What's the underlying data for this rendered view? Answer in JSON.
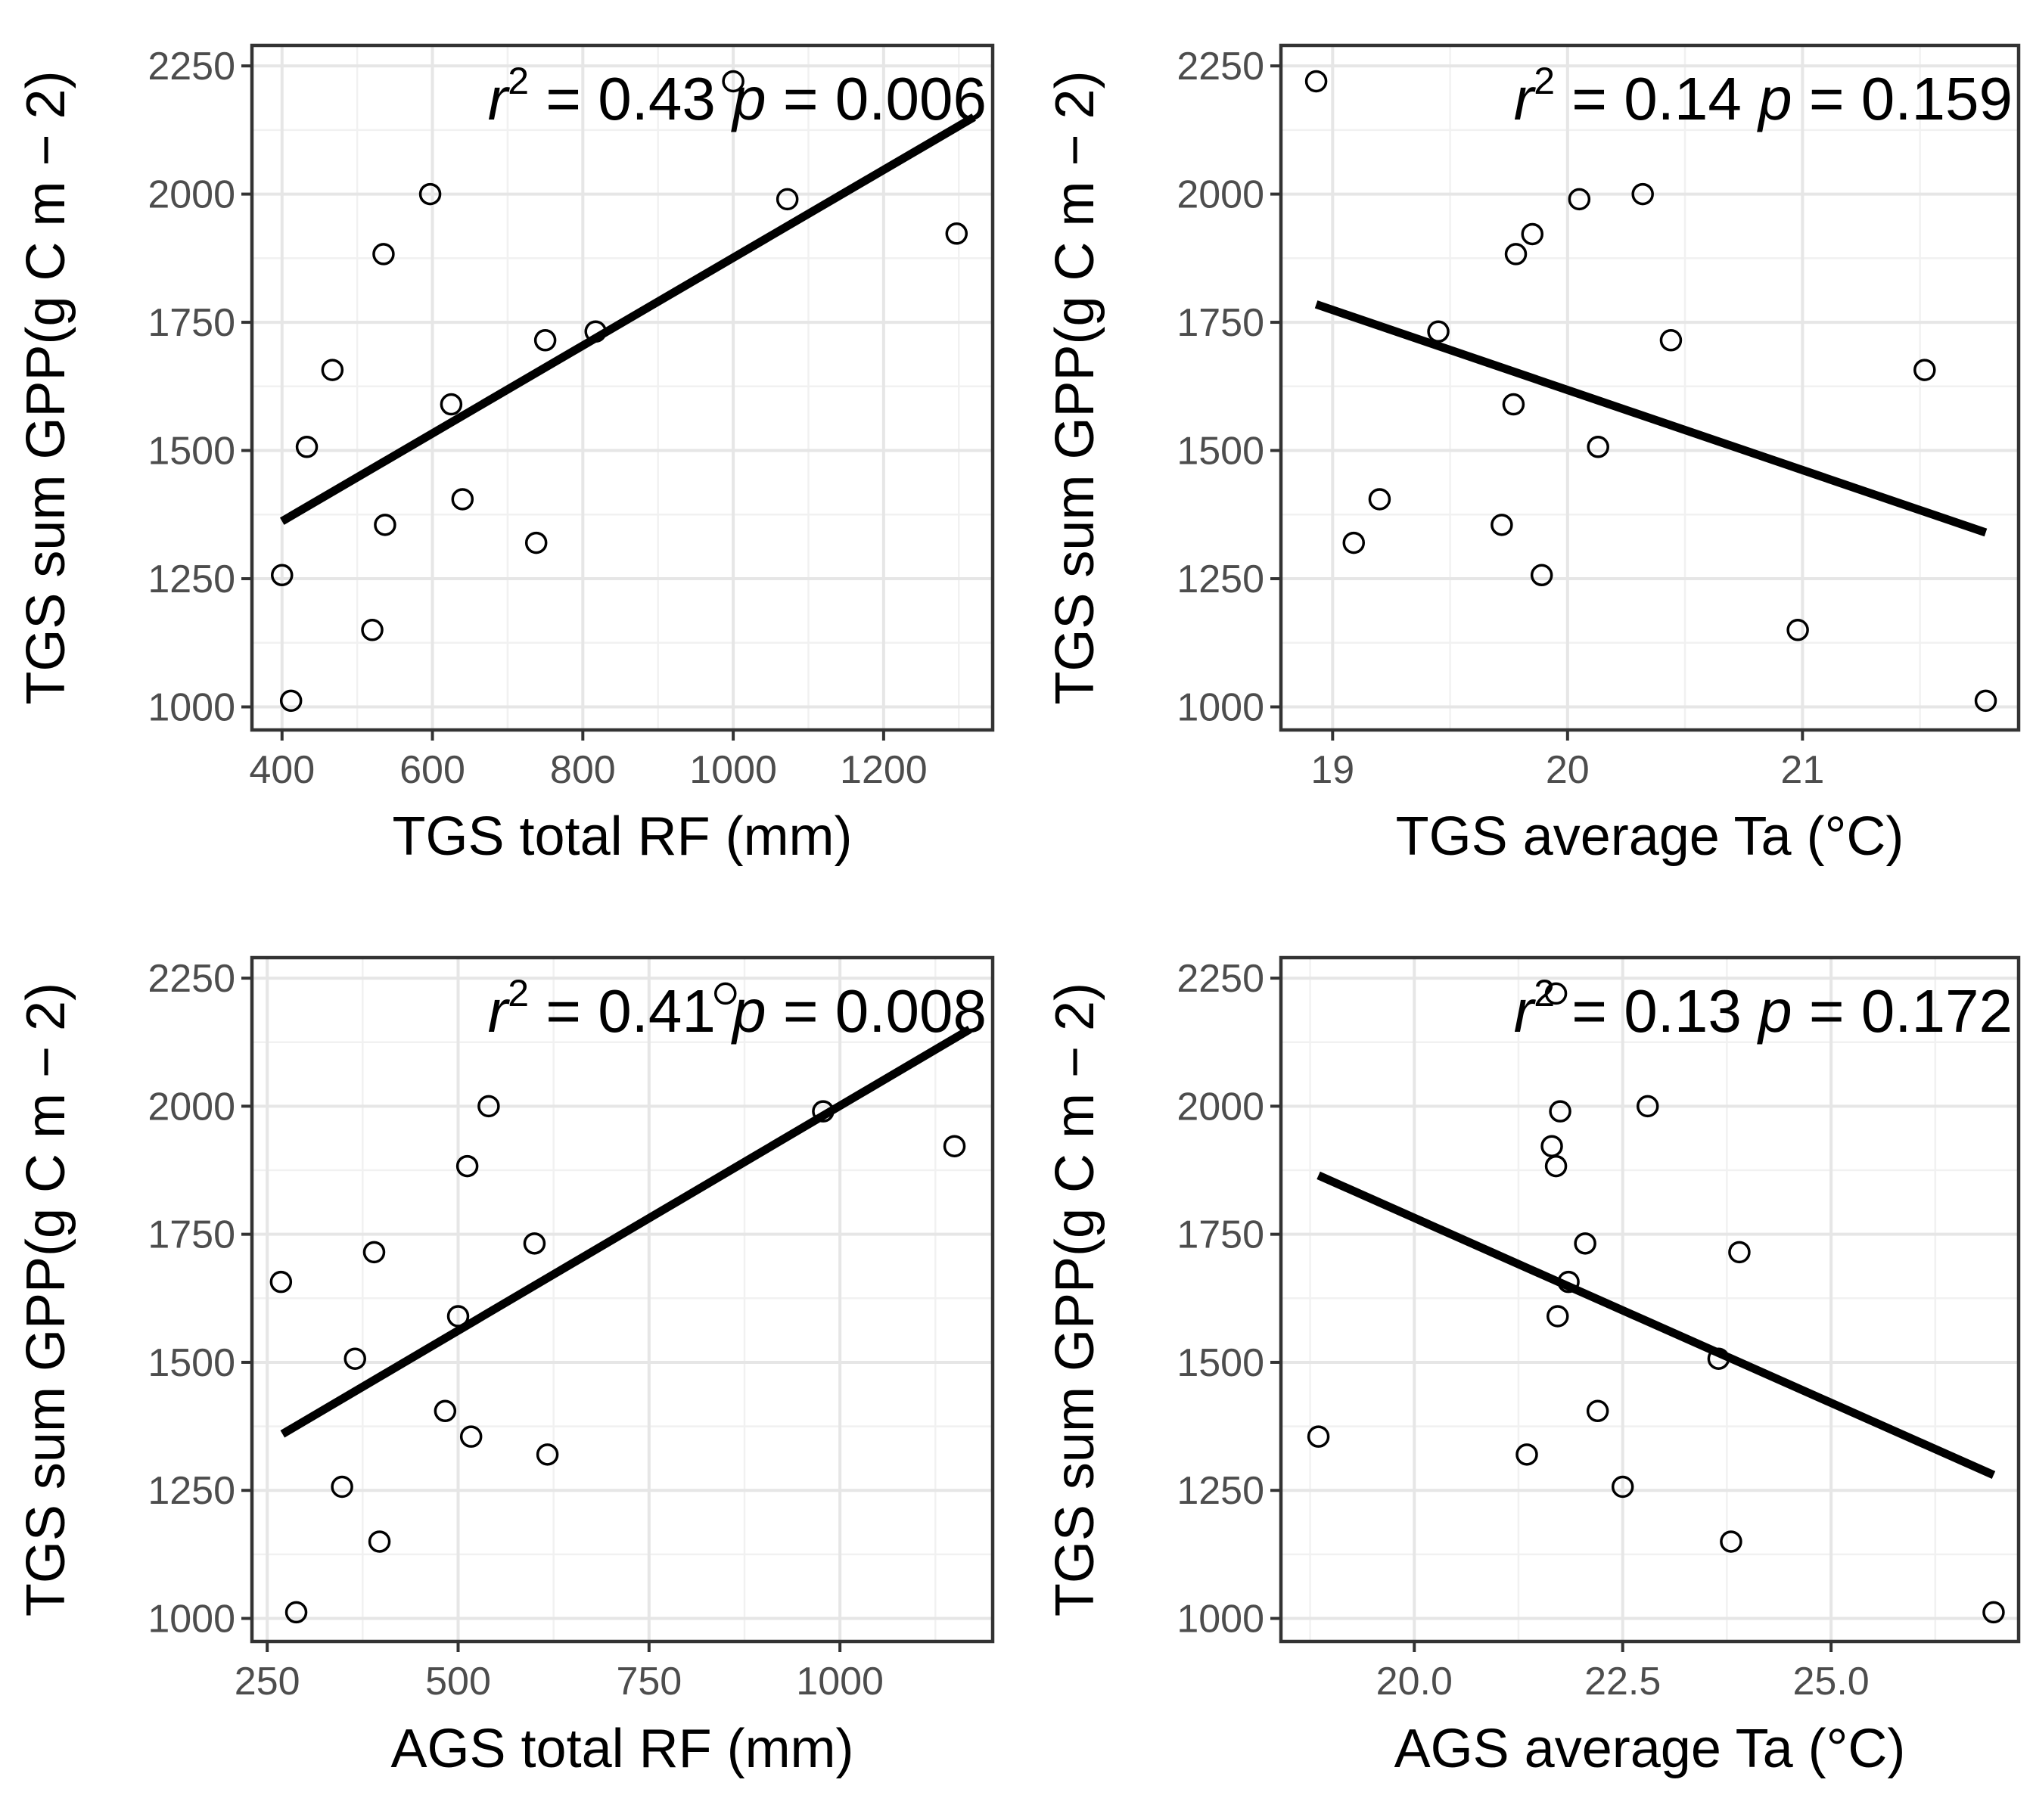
{
  "chart_data": [
    {
      "type": "scatter",
      "xlabel": "TGS total RF (mm)",
      "ylabel": "TGS sum GPP(g C m − 2)",
      "xlim": [
        360,
        1345
      ],
      "ylim": [
        955,
        2290
      ],
      "xticks": [
        400,
        600,
        800,
        1000,
        1200
      ],
      "xtick_labels": [
        "400",
        "600",
        "800",
        "1000",
        "1200"
      ],
      "yticks": [
        1000,
        1250,
        1500,
        1750,
        2000,
        2250
      ],
      "ytick_labels": [
        "1000",
        "1250",
        "1500",
        "1750",
        "2000",
        "2250"
      ],
      "annotation": {
        "r_symbol": "r",
        "sup": "2",
        "r2_text": " = 0.43",
        "p_symbol": "p",
        "p_text": " = 0.006"
      },
      "points": [
        {
          "x": 1000,
          "y": 2220
        },
        {
          "x": 597,
          "y": 2000
        },
        {
          "x": 1072,
          "y": 1990
        },
        {
          "x": 1297,
          "y": 1923
        },
        {
          "x": 535,
          "y": 1883
        },
        {
          "x": 817,
          "y": 1732
        },
        {
          "x": 750,
          "y": 1715
        },
        {
          "x": 467,
          "y": 1657
        },
        {
          "x": 625,
          "y": 1590
        },
        {
          "x": 433,
          "y": 1507
        },
        {
          "x": 640,
          "y": 1405
        },
        {
          "x": 537,
          "y": 1355
        },
        {
          "x": 738,
          "y": 1320
        },
        {
          "x": 400,
          "y": 1257
        },
        {
          "x": 520,
          "y": 1150
        },
        {
          "x": 412,
          "y": 1012
        }
      ],
      "fit": {
        "x": [
          400,
          1320
        ],
        "y": [
          1362,
          2150
        ]
      }
    },
    {
      "type": "scatter",
      "xlabel": "TGS average Ta (°C)",
      "ylabel": "TGS sum GPP(g C m − 2)",
      "xlim": [
        18.78,
        21.92
      ],
      "ylim": [
        955,
        2290
      ],
      "xticks": [
        19,
        20,
        21
      ],
      "xtick_labels": [
        "19",
        "20",
        "21"
      ],
      "yticks": [
        1000,
        1250,
        1500,
        1750,
        2000,
        2250
      ],
      "ytick_labels": [
        "1000",
        "1250",
        "1500",
        "1750",
        "2000",
        "2250"
      ],
      "annotation": {
        "r_symbol": "r",
        "sup": "2",
        "r2_text": " = 0.14",
        "p_symbol": "p",
        "p_text": " = 0.159"
      },
      "points": [
        {
          "x": 18.93,
          "y": 2220
        },
        {
          "x": 20.32,
          "y": 2000
        },
        {
          "x": 20.05,
          "y": 1990
        },
        {
          "x": 19.85,
          "y": 1922
        },
        {
          "x": 19.78,
          "y": 1883
        },
        {
          "x": 19.45,
          "y": 1732
        },
        {
          "x": 20.44,
          "y": 1715
        },
        {
          "x": 21.52,
          "y": 1657
        },
        {
          "x": 19.77,
          "y": 1590
        },
        {
          "x": 20.13,
          "y": 1507
        },
        {
          "x": 19.2,
          "y": 1405
        },
        {
          "x": 19.72,
          "y": 1355
        },
        {
          "x": 19.09,
          "y": 1320
        },
        {
          "x": 19.89,
          "y": 1257
        },
        {
          "x": 20.98,
          "y": 1150
        },
        {
          "x": 21.78,
          "y": 1012
        }
      ],
      "fit": {
        "x": [
          18.93,
          21.78
        ],
        "y": [
          1785,
          1340
        ]
      }
    },
    {
      "type": "scatter",
      "xlabel": "AGS total RF (mm)",
      "ylabel": "TGS sum GPP(g C m − 2)",
      "xlim": [
        230,
        1200
      ],
      "ylim": [
        955,
        2290
      ],
      "xticks": [
        250,
        500,
        750,
        1000
      ],
      "xtick_labels": [
        "250",
        "500",
        "750",
        "1000"
      ],
      "yticks": [
        1000,
        1250,
        1500,
        1750,
        2000,
        2250
      ],
      "ytick_labels": [
        "1000",
        "1250",
        "1500",
        "1750",
        "2000",
        "2250"
      ],
      "annotation": {
        "r_symbol": "r",
        "sup": "2",
        "r2_text": " = 0.41",
        "p_symbol": "p",
        "p_text": " = 0.008"
      },
      "points": [
        {
          "x": 850,
          "y": 2220
        },
        {
          "x": 540,
          "y": 2000
        },
        {
          "x": 978,
          "y": 1990
        },
        {
          "x": 1150,
          "y": 1922
        },
        {
          "x": 512,
          "y": 1883
        },
        {
          "x": 600,
          "y": 1732
        },
        {
          "x": 390,
          "y": 1715
        },
        {
          "x": 268,
          "y": 1657
        },
        {
          "x": 500,
          "y": 1590
        },
        {
          "x": 365,
          "y": 1507
        },
        {
          "x": 483,
          "y": 1405
        },
        {
          "x": 517,
          "y": 1355
        },
        {
          "x": 617,
          "y": 1320
        },
        {
          "x": 348,
          "y": 1257
        },
        {
          "x": 397,
          "y": 1150
        },
        {
          "x": 288,
          "y": 1012
        }
      ],
      "fit": {
        "x": [
          270,
          1170
        ],
        "y": [
          1360,
          2150
        ]
      }
    },
    {
      "type": "scatter",
      "xlabel": "AGS average Ta (°C)",
      "ylabel": "TGS sum GPP(g C m − 2)",
      "xlim": [
        18.4,
        27.25
      ],
      "ylim": [
        955,
        2290
      ],
      "xticks": [
        20.0,
        22.5,
        25.0
      ],
      "xtick_labels": [
        "20.0",
        "22.5",
        "25.0"
      ],
      "yticks": [
        1000,
        1250,
        1500,
        1750,
        2000,
        2250
      ],
      "ytick_labels": [
        "1000",
        "1250",
        "1500",
        "1750",
        "2000",
        "2250"
      ],
      "annotation": {
        "r_symbol": "r",
        "sup": "2",
        "r2_text": " = 0.13",
        "p_symbol": "p",
        "p_text": " = 0.172"
      },
      "points": [
        {
          "x": 21.7,
          "y": 2220
        },
        {
          "x": 22.8,
          "y": 2000
        },
        {
          "x": 21.75,
          "y": 1990
        },
        {
          "x": 21.65,
          "y": 1922
        },
        {
          "x": 21.7,
          "y": 1883
        },
        {
          "x": 22.05,
          "y": 1732
        },
        {
          "x": 23.9,
          "y": 1715
        },
        {
          "x": 21.85,
          "y": 1657
        },
        {
          "x": 21.72,
          "y": 1590
        },
        {
          "x": 23.65,
          "y": 1507
        },
        {
          "x": 22.2,
          "y": 1405
        },
        {
          "x": 18.85,
          "y": 1355
        },
        {
          "x": 21.35,
          "y": 1320
        },
        {
          "x": 22.5,
          "y": 1257
        },
        {
          "x": 23.8,
          "y": 1150
        },
        {
          "x": 26.95,
          "y": 1012
        }
      ],
      "fit": {
        "x": [
          18.85,
          26.95
        ],
        "y": [
          1865,
          1280
        ]
      }
    }
  ]
}
